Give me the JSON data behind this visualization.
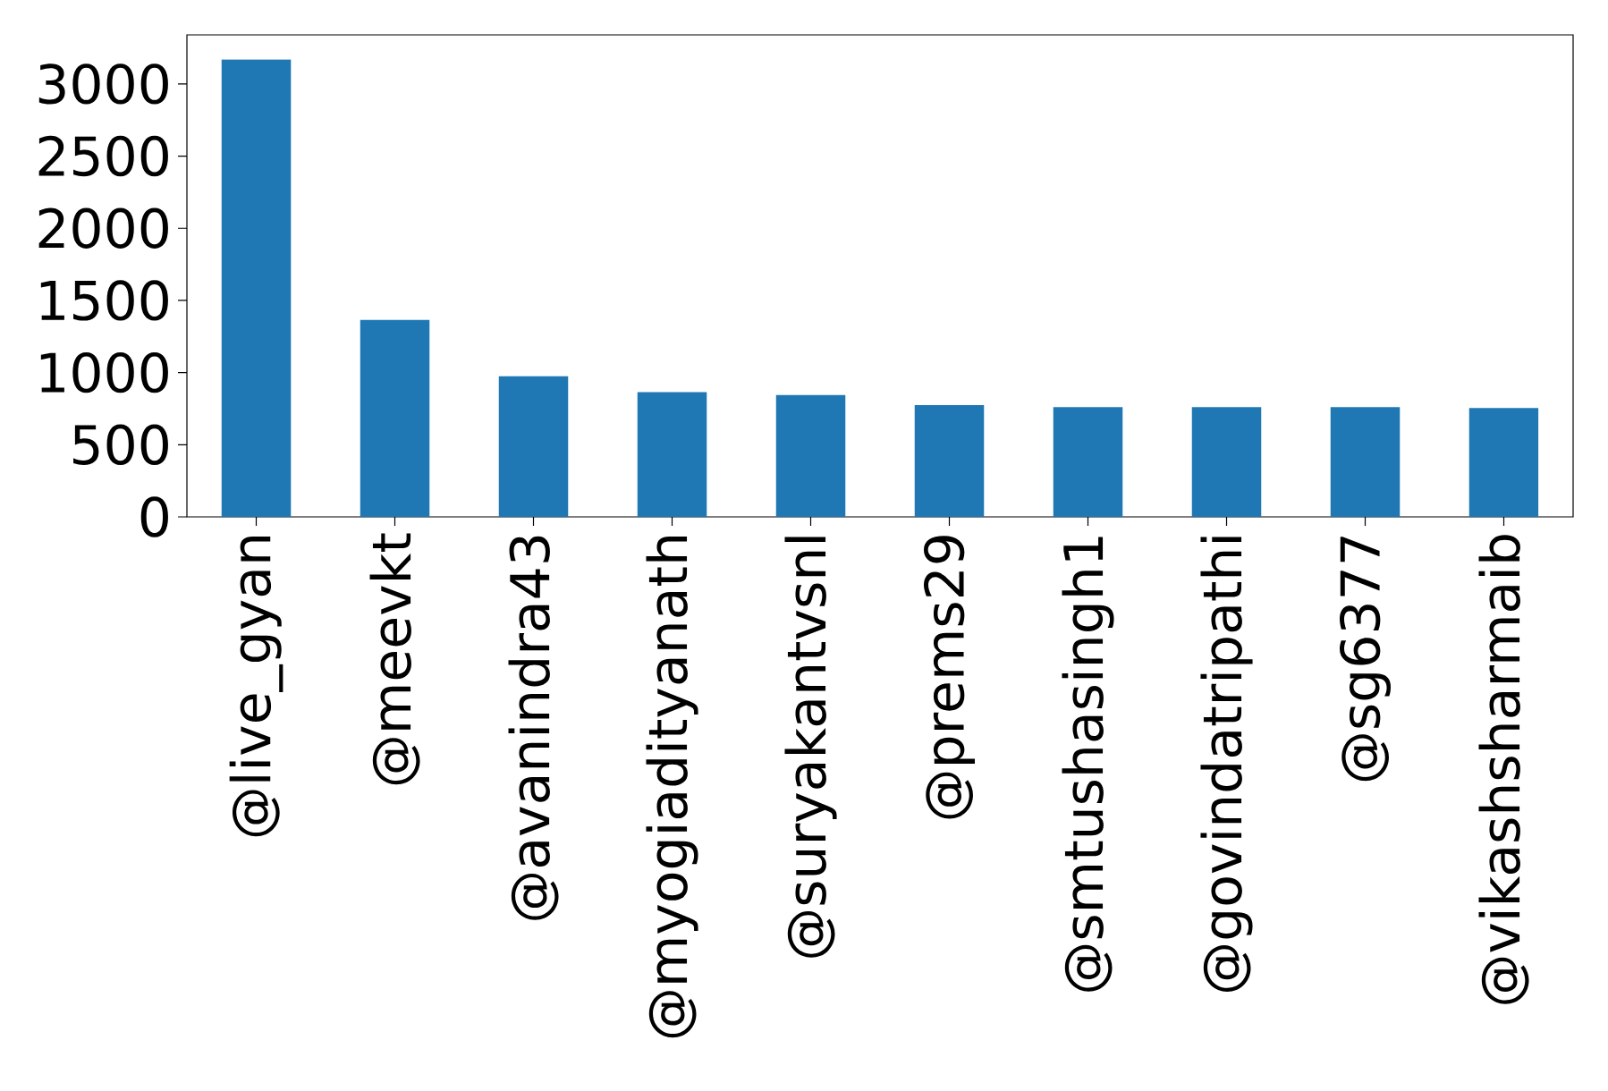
{
  "chart_data": {
    "type": "bar",
    "categories": [
      "@live_gyan",
      "@meevkt",
      "@avanindra43",
      "@myogiadityanath",
      "@suryakantvsnl",
      "@prems29",
      "@smtushasingh1",
      "@govindatripathi",
      "@sg6377",
      "@vikashsharmaib"
    ],
    "values": [
      3170,
      1365,
      975,
      865,
      845,
      775,
      760,
      760,
      760,
      755
    ],
    "color": "#1f77b4",
    "ylim": [
      0,
      3340
    ],
    "yticks": [
      0,
      500,
      1000,
      1500,
      2000,
      2500,
      3000
    ]
  }
}
